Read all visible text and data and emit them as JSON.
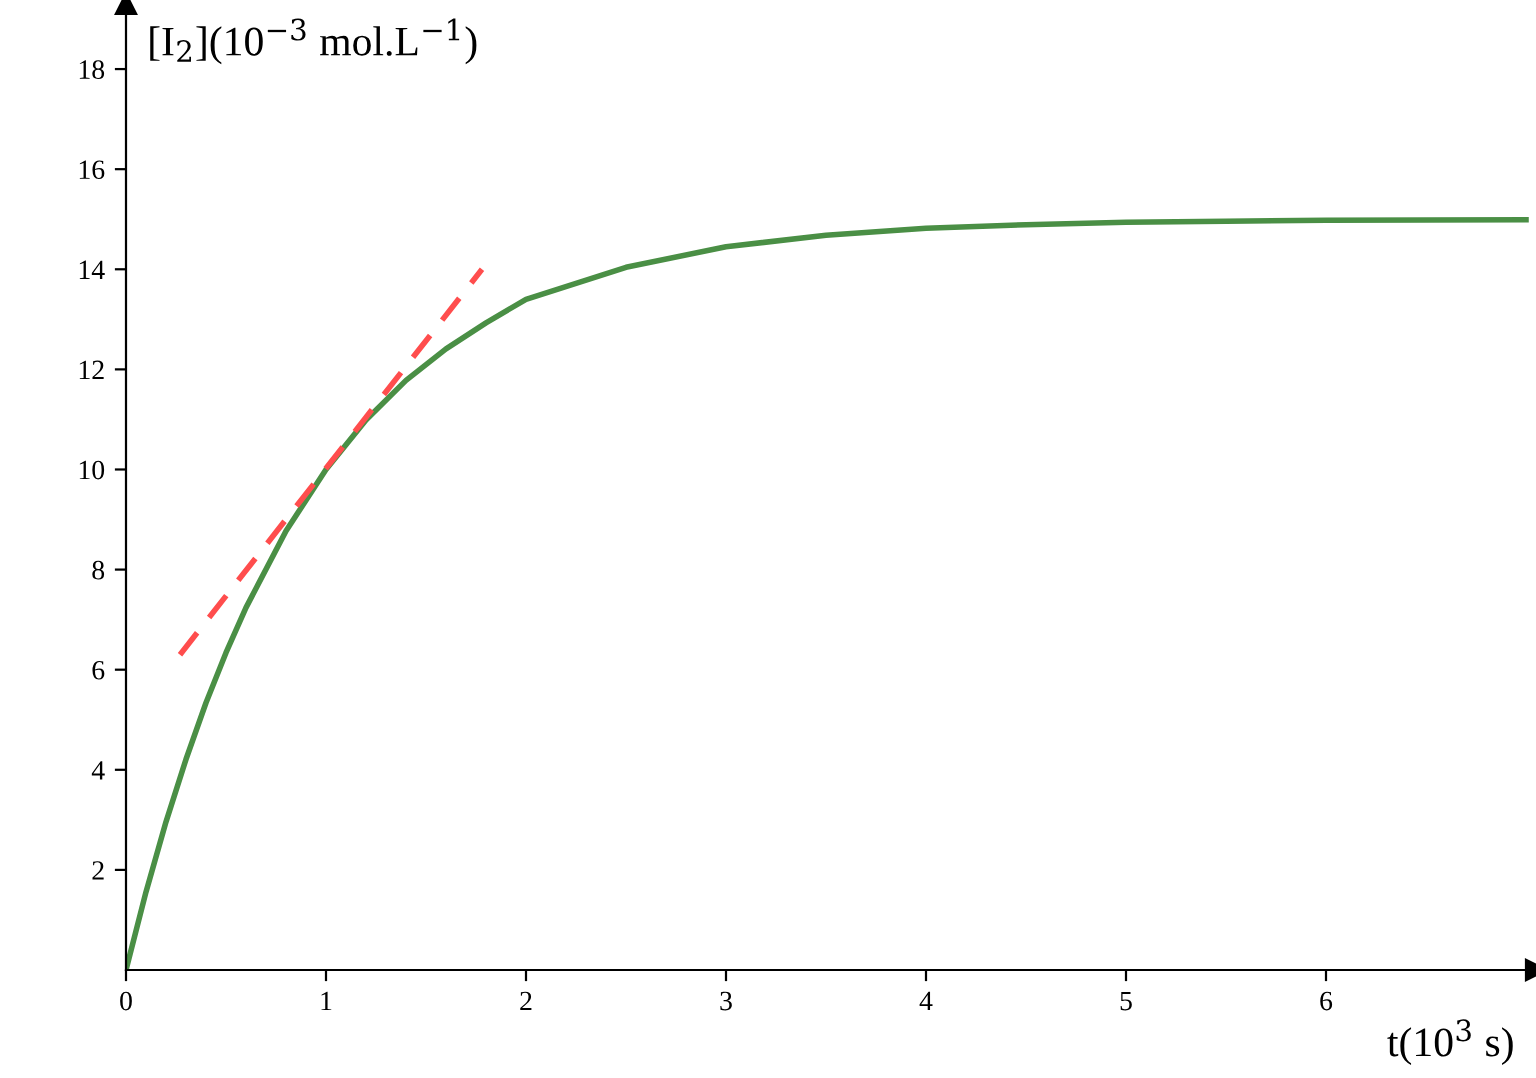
{
  "chart_data": {
    "type": "line",
    "xlabel": "t(10$^{3}$ s)",
    "ylabel": "[I$_{2}$](10$^{−3}$ mol.L$^{−1}$)",
    "series": [
      {
        "x": [
          0,
          0.1,
          0.2,
          0.3,
          0.4,
          0.5,
          0.6,
          0.8,
          1.0,
          1.2,
          1.4,
          1.6,
          1.8,
          2.0,
          2.5,
          3.0,
          3.5,
          4.0,
          4.5,
          5.0,
          5.5,
          6.0,
          7.0
        ],
        "values": [
          0,
          1.56,
          2.96,
          4.21,
          5.34,
          6.34,
          7.24,
          8.77,
          10.0,
          10.99,
          11.78,
          12.41,
          12.93,
          13.4,
          14.04,
          14.45,
          14.68,
          14.82,
          14.89,
          14.94,
          14.96,
          14.98,
          14.99
        ],
        "color": "#4a8f45",
        "line_style": "solid"
      },
      {
        "x": [
          0.27,
          1.78
        ],
        "values": [
          6.3,
          14.0
        ],
        "color": "#ff4d4d",
        "line_style": "dashed"
      }
    ],
    "xlim": [
      0,
      7.05
    ],
    "ylim": [
      0,
      19.3
    ],
    "xticks": [
      0,
      1,
      2,
      3,
      4,
      5,
      6
    ],
    "yticks": [
      2,
      4,
      6,
      8,
      10,
      12,
      14,
      16,
      18
    ],
    "grid": false,
    "legend": false,
    "marker": "none"
  }
}
